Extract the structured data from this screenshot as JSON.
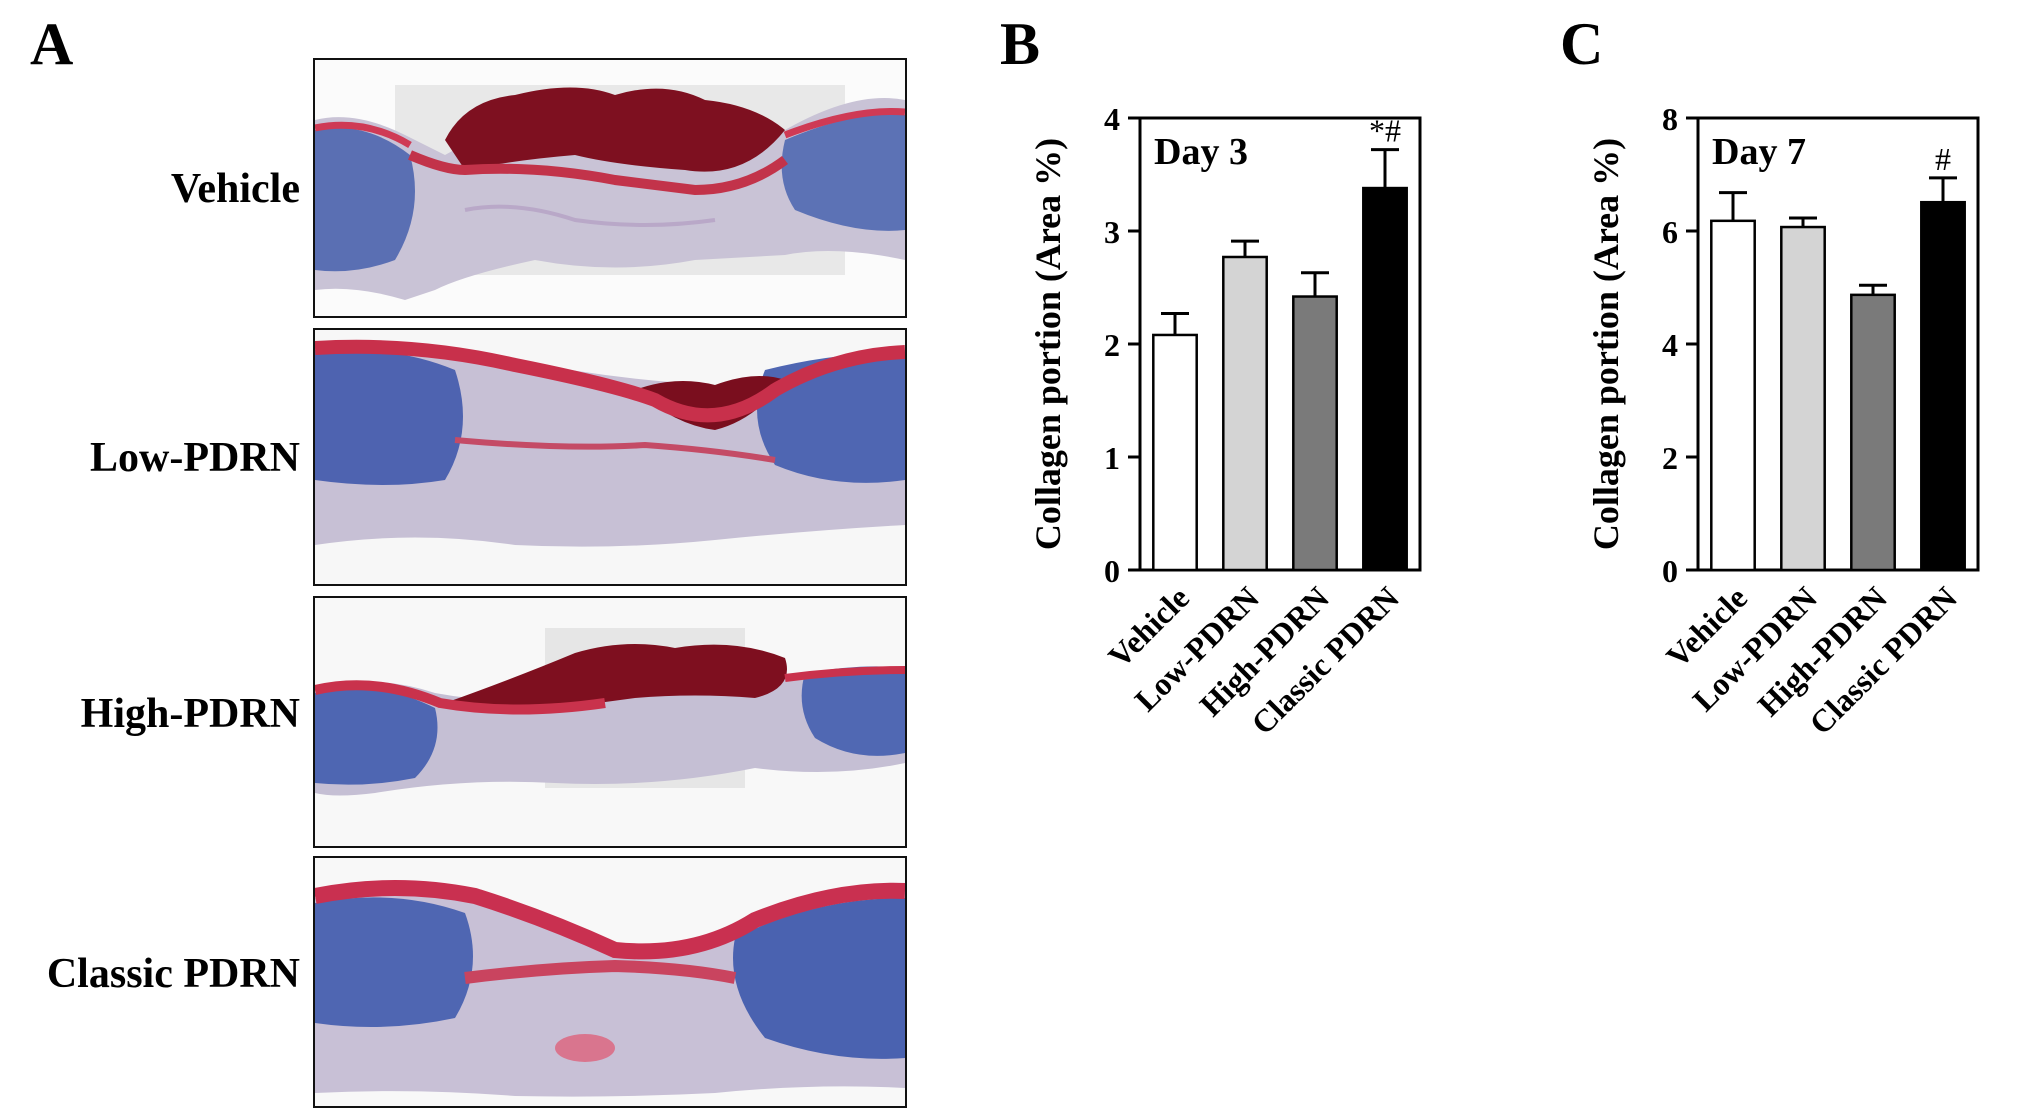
{
  "panels": {
    "a": "A",
    "b": "B",
    "c": "C"
  },
  "histology": {
    "rows": [
      {
        "label": "Vehicle"
      },
      {
        "label": "Low-PDRN"
      },
      {
        "label": "High-PDRN"
      },
      {
        "label": "Classic PDRN"
      }
    ]
  },
  "chart_data": [
    {
      "type": "bar",
      "panel": "B",
      "title": "Day 3",
      "ylabel": "Collagen portion (Area %)",
      "xlabel": "",
      "ylim": [
        0,
        4
      ],
      "yticks": [
        0,
        1,
        2,
        3,
        4
      ],
      "categories": [
        "Vehicle",
        "Low-PDRN",
        "High-PDRN",
        "Classic PDRN"
      ],
      "values": [
        2.08,
        2.77,
        2.42,
        3.38
      ],
      "errors": [
        0.19,
        0.14,
        0.21,
        0.34
      ],
      "annotations": [
        "",
        "",
        "",
        "*#"
      ],
      "colors": [
        "#ffffff",
        "#d4d4d4",
        "#7a7a7a",
        "#000000"
      ],
      "grid": false
    },
    {
      "type": "bar",
      "panel": "C",
      "title": "Day 7",
      "ylabel": "Collagen portion (Area %)",
      "xlabel": "",
      "ylim": [
        0,
        8
      ],
      "yticks": [
        0,
        2,
        4,
        6,
        8
      ],
      "categories": [
        "Vehicle",
        "Low-PDRN",
        "High-PDRN",
        "Classic PDRN"
      ],
      "values": [
        6.18,
        6.07,
        4.87,
        6.51
      ],
      "errors": [
        0.5,
        0.16,
        0.17,
        0.43
      ],
      "annotations": [
        "",
        "",
        "",
        "#"
      ],
      "colors": [
        "#ffffff",
        "#d4d4d4",
        "#7a7a7a",
        "#000000"
      ],
      "grid": false
    }
  ]
}
